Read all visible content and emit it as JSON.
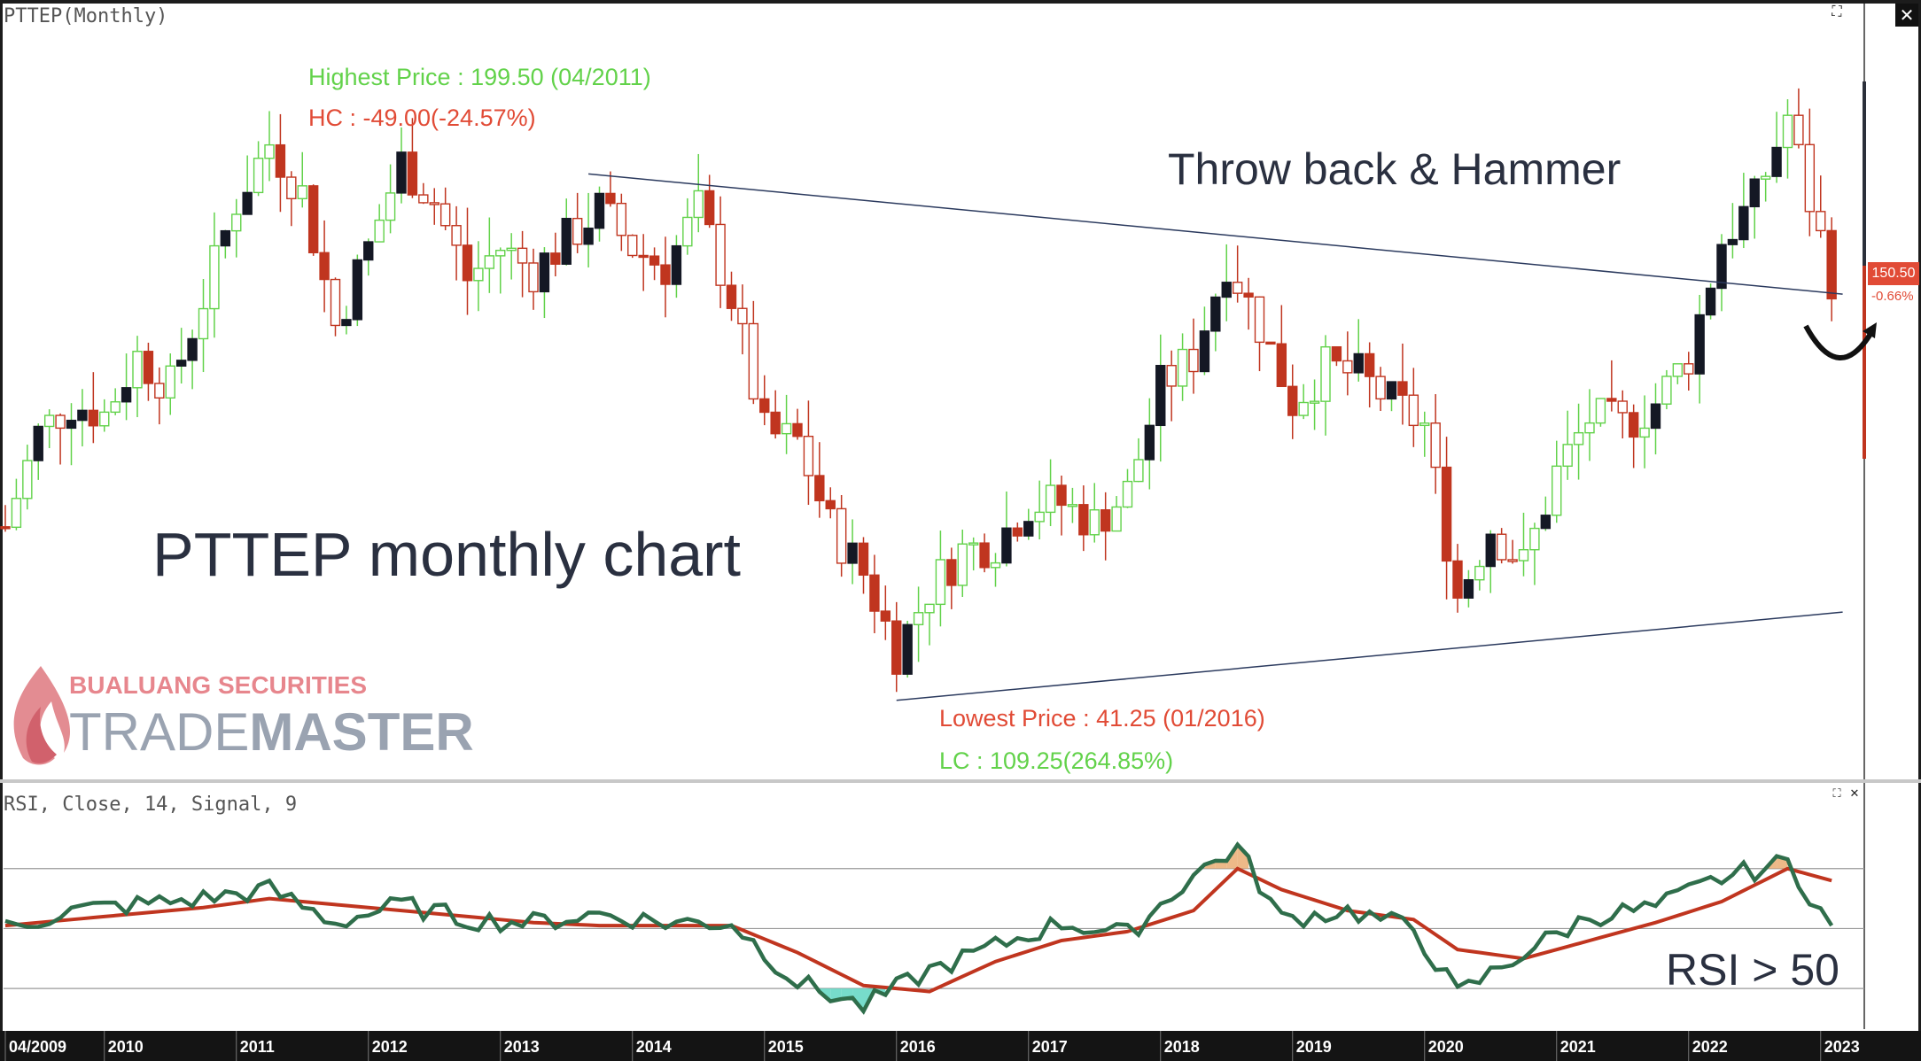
{
  "main_title": "PTTEP(Monthly)",
  "rsi_title": "RSI, Close, 14, Signal, 9",
  "colors": {
    "up": "#62d24a",
    "down": "#c0351f",
    "black": "#141824",
    "rsi": "#2f6e4b",
    "signal": "#c0351f",
    "trend": "#2b3a5e"
  },
  "annotations": {
    "highest": "Highest Price : 199.50 (04/2011)",
    "hc": "HC : -49.00(-24.57%)",
    "throwback": "Throw back & Hammer",
    "chart_name": "PTTEP monthly chart",
    "lowest": "Lowest Price : 41.25 (01/2016)",
    "lc": "LC : 109.25(264.85%)",
    "rsi_note": "RSI > 50"
  },
  "logo": {
    "company": "BUALUANG SECURITIES",
    "product_a": "TRADE",
    "product_b": "MASTER"
  },
  "last_price": {
    "value": "150.50",
    "change": "-0.66%"
  },
  "chart_data": [
    {
      "type": "candlestick",
      "title": "PTTEP(Monthly)",
      "x_ticks": [
        "04/2009",
        "2010",
        "2011",
        "2012",
        "2013",
        "2014",
        "2015",
        "2016",
        "2017",
        "2018",
        "2019",
        "2020",
        "2021",
        "2022",
        "2023"
      ],
      "y_range": [
        30,
        215
      ],
      "close_series": [
        {
          "date": "2009-04",
          "close": 86
        },
        {
          "date": "2009-07",
          "close": 110
        },
        {
          "date": "2009-10",
          "close": 118
        },
        {
          "date": "2010-01",
          "close": 115
        },
        {
          "date": "2010-04",
          "close": 130
        },
        {
          "date": "2010-07",
          "close": 122
        },
        {
          "date": "2010-10",
          "close": 145
        },
        {
          "date": "2011-01",
          "close": 170
        },
        {
          "date": "2011-04",
          "close": 185
        },
        {
          "date": "2011-07",
          "close": 172
        },
        {
          "date": "2011-10",
          "close": 138
        },
        {
          "date": "2012-01",
          "close": 158
        },
        {
          "date": "2012-04",
          "close": 180
        },
        {
          "date": "2012-07",
          "close": 170
        },
        {
          "date": "2012-10",
          "close": 150
        },
        {
          "date": "2013-01",
          "close": 158
        },
        {
          "date": "2013-04",
          "close": 152
        },
        {
          "date": "2013-07",
          "close": 160
        },
        {
          "date": "2013-10",
          "close": 168
        },
        {
          "date": "2014-01",
          "close": 158
        },
        {
          "date": "2014-04",
          "close": 153
        },
        {
          "date": "2014-07",
          "close": 168
        },
        {
          "date": "2014-10",
          "close": 145
        },
        {
          "date": "2015-01",
          "close": 110
        },
        {
          "date": "2015-04",
          "close": 108
        },
        {
          "date": "2015-07",
          "close": 86
        },
        {
          "date": "2015-10",
          "close": 74
        },
        {
          "date": "2016-01",
          "close": 54
        },
        {
          "date": "2016-04",
          "close": 70
        },
        {
          "date": "2016-07",
          "close": 80
        },
        {
          "date": "2016-10",
          "close": 82
        },
        {
          "date": "2017-01",
          "close": 92
        },
        {
          "date": "2017-04",
          "close": 92
        },
        {
          "date": "2017-07",
          "close": 87
        },
        {
          "date": "2017-10",
          "close": 95
        },
        {
          "date": "2018-01",
          "close": 122
        },
        {
          "date": "2018-04",
          "close": 130
        },
        {
          "date": "2018-07",
          "close": 155
        },
        {
          "date": "2018-10",
          "close": 138
        },
        {
          "date": "2019-01",
          "close": 118
        },
        {
          "date": "2019-04",
          "close": 127
        },
        {
          "date": "2019-07",
          "close": 125
        },
        {
          "date": "2019-10",
          "close": 118
        },
        {
          "date": "2020-01",
          "close": 112
        },
        {
          "date": "2020-04",
          "close": 68
        },
        {
          "date": "2020-07",
          "close": 86
        },
        {
          "date": "2020-10",
          "close": 76
        },
        {
          "date": "2021-01",
          "close": 100
        },
        {
          "date": "2021-04",
          "close": 114
        },
        {
          "date": "2021-07",
          "close": 112
        },
        {
          "date": "2021-10",
          "close": 118
        },
        {
          "date": "2022-01",
          "close": 130
        },
        {
          "date": "2022-04",
          "close": 160
        },
        {
          "date": "2022-07",
          "close": 170
        },
        {
          "date": "2022-10",
          "close": 192
        },
        {
          "date": "2022-12",
          "close": 170
        },
        {
          "date": "2023-02",
          "close": 150.5
        }
      ],
      "trendlines": [
        {
          "name": "resistance",
          "from": {
            "date": "2013-09",
            "price": 177
          },
          "to": {
            "date": "2023-03",
            "price": 146
          }
        },
        {
          "name": "support",
          "from": {
            "date": "2016-01",
            "price": 41.25
          },
          "to": {
            "date": "2023-03",
            "price": 64
          }
        }
      ]
    },
    {
      "type": "line",
      "title": "RSI, Close, 14, Signal, 9",
      "y_range": [
        20,
        85
      ],
      "levels": [
        30,
        50,
        70
      ],
      "series": [
        {
          "values": [
            {
              "date": "2009-04",
              "rsi": 50,
              "signal": 51
            },
            {
              "date": "2009-10",
              "rsi": 56,
              "signal": 53
            },
            {
              "date": "2010-04",
              "rsi": 58,
              "signal": 55
            },
            {
              "date": "2010-10",
              "rsi": 60,
              "signal": 57
            },
            {
              "date": "2011-04",
              "rsi": 63,
              "signal": 60
            },
            {
              "date": "2011-10",
              "rsi": 52,
              "signal": 58
            },
            {
              "date": "2012-04",
              "rsi": 58,
              "signal": 56
            },
            {
              "date": "2012-10",
              "rsi": 53,
              "signal": 54
            },
            {
              "date": "2013-04",
              "rsi": 52,
              "signal": 52
            },
            {
              "date": "2013-10",
              "rsi": 55,
              "signal": 51
            },
            {
              "date": "2014-04",
              "rsi": 52,
              "signal": 51
            },
            {
              "date": "2014-10",
              "rsi": 52,
              "signal": 51
            },
            {
              "date": "2015-04",
              "rsi": 32,
              "signal": 42
            },
            {
              "date": "2015-10",
              "rsi": 24,
              "signal": 31
            },
            {
              "date": "2016-04",
              "rsi": 36,
              "signal": 29
            },
            {
              "date": "2016-10",
              "rsi": 44,
              "signal": 39
            },
            {
              "date": "2017-04",
              "rsi": 52,
              "signal": 46
            },
            {
              "date": "2017-10",
              "rsi": 48,
              "signal": 49
            },
            {
              "date": "2018-04",
              "rsi": 68,
              "signal": 56
            },
            {
              "date": "2018-08",
              "rsi": 77,
              "signal": 70
            },
            {
              "date": "2018-12",
              "rsi": 53,
              "signal": 63
            },
            {
              "date": "2019-06",
              "rsi": 56,
              "signal": 56
            },
            {
              "date": "2019-12",
              "rsi": 50,
              "signal": 53
            },
            {
              "date": "2020-04",
              "rsi": 28,
              "signal": 43
            },
            {
              "date": "2020-10",
              "rsi": 42,
              "signal": 40
            },
            {
              "date": "2021-04",
              "rsi": 54,
              "signal": 46
            },
            {
              "date": "2021-10",
              "rsi": 57,
              "signal": 52
            },
            {
              "date": "2022-04",
              "rsi": 67,
              "signal": 59
            },
            {
              "date": "2022-10",
              "rsi": 72,
              "signal": 70
            },
            {
              "date": "2023-02",
              "rsi": 51,
              "signal": 66
            }
          ]
        }
      ]
    }
  ]
}
